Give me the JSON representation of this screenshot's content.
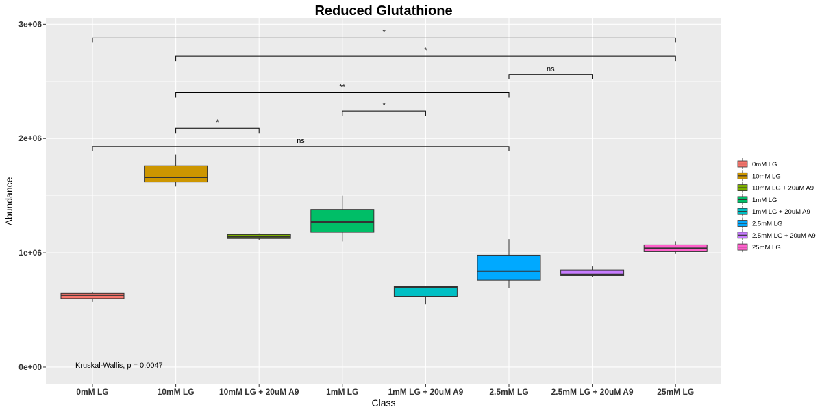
{
  "chart_data": {
    "type": "box",
    "title": "Reduced Glutathione",
    "xlabel": "Class",
    "ylabel": "Abundance",
    "ylim": [
      -150000,
      3050000
    ],
    "yticks": [
      0,
      1000000,
      2000000,
      3000000
    ],
    "ytick_labels": [
      "0e+00",
      "1e+06",
      "2e+06",
      "3e+06"
    ],
    "categories": [
      "0mM LG",
      "10mM LG",
      "10mM LG + 20uM A9",
      "1mM LG",
      "1mM LG + 20uM A9",
      "2.5mM LG",
      "2.5mM LG + 20uM A9",
      "25mM LG"
    ],
    "boxes": [
      {
        "label": "0mM LG",
        "color": "#F8766D",
        "min": 570000,
        "q1": 600000,
        "median": 630000,
        "q3": 645000,
        "max": 660000
      },
      {
        "label": "10mM LG",
        "color": "#CD9600",
        "min": 1580000,
        "q1": 1620000,
        "median": 1660000,
        "q3": 1760000,
        "max": 1860000
      },
      {
        "label": "10mM LG + 20uM A9",
        "color": "#7CAE00",
        "min": 1110000,
        "q1": 1125000,
        "median": 1140000,
        "q3": 1160000,
        "max": 1170000
      },
      {
        "label": "1mM LG",
        "color": "#00BE67",
        "min": 1100000,
        "q1": 1180000,
        "median": 1270000,
        "q3": 1380000,
        "max": 1500000
      },
      {
        "label": "1mM LG + 20uM A9",
        "color": "#00BFC4",
        "min": 550000,
        "q1": 620000,
        "median": 700000,
        "q3": 705000,
        "max": 710000
      },
      {
        "label": "2.5mM LG",
        "color": "#00A9FF",
        "min": 690000,
        "q1": 760000,
        "median": 840000,
        "q3": 980000,
        "max": 1120000
      },
      {
        "label": "2.5mM LG + 20uM A9",
        "color": "#C77CFF",
        "min": 790000,
        "q1": 800000,
        "median": 810000,
        "q3": 850000,
        "max": 880000
      },
      {
        "label": "25mM LG",
        "color": "#FF61CC",
        "min": 990000,
        "q1": 1010000,
        "median": 1040000,
        "q3": 1070000,
        "max": 1100000
      }
    ],
    "comparisons": [
      {
        "from": "0mM LG",
        "to": "25mM LG",
        "y": 2880000,
        "label": "*"
      },
      {
        "from": "10mM LG",
        "to": "25mM LG",
        "y": 2720000,
        "label": "*"
      },
      {
        "from": "2.5mM LG",
        "to": "2.5mM LG + 20uM A9",
        "y": 2560000,
        "label": "ns"
      },
      {
        "from": "10mM LG",
        "to": "2.5mM LG",
        "y": 2400000,
        "label": "**"
      },
      {
        "from": "1mM LG",
        "to": "1mM LG + 20uM A9",
        "y": 2240000,
        "label": "*"
      },
      {
        "from": "10mM LG",
        "to": "10mM LG + 20uM A9",
        "y": 2090000,
        "label": "*"
      },
      {
        "from": "0mM LG",
        "to": "2.5mM LG",
        "y": 1930000,
        "label": "ns"
      }
    ],
    "annotation": "Kruskal-Wallis, p = 0.0047",
    "legend_title": "",
    "legend_position": "right",
    "grid": true,
    "panel_background": "#EBEBEB",
    "grid_color": "#FFFFFF"
  }
}
